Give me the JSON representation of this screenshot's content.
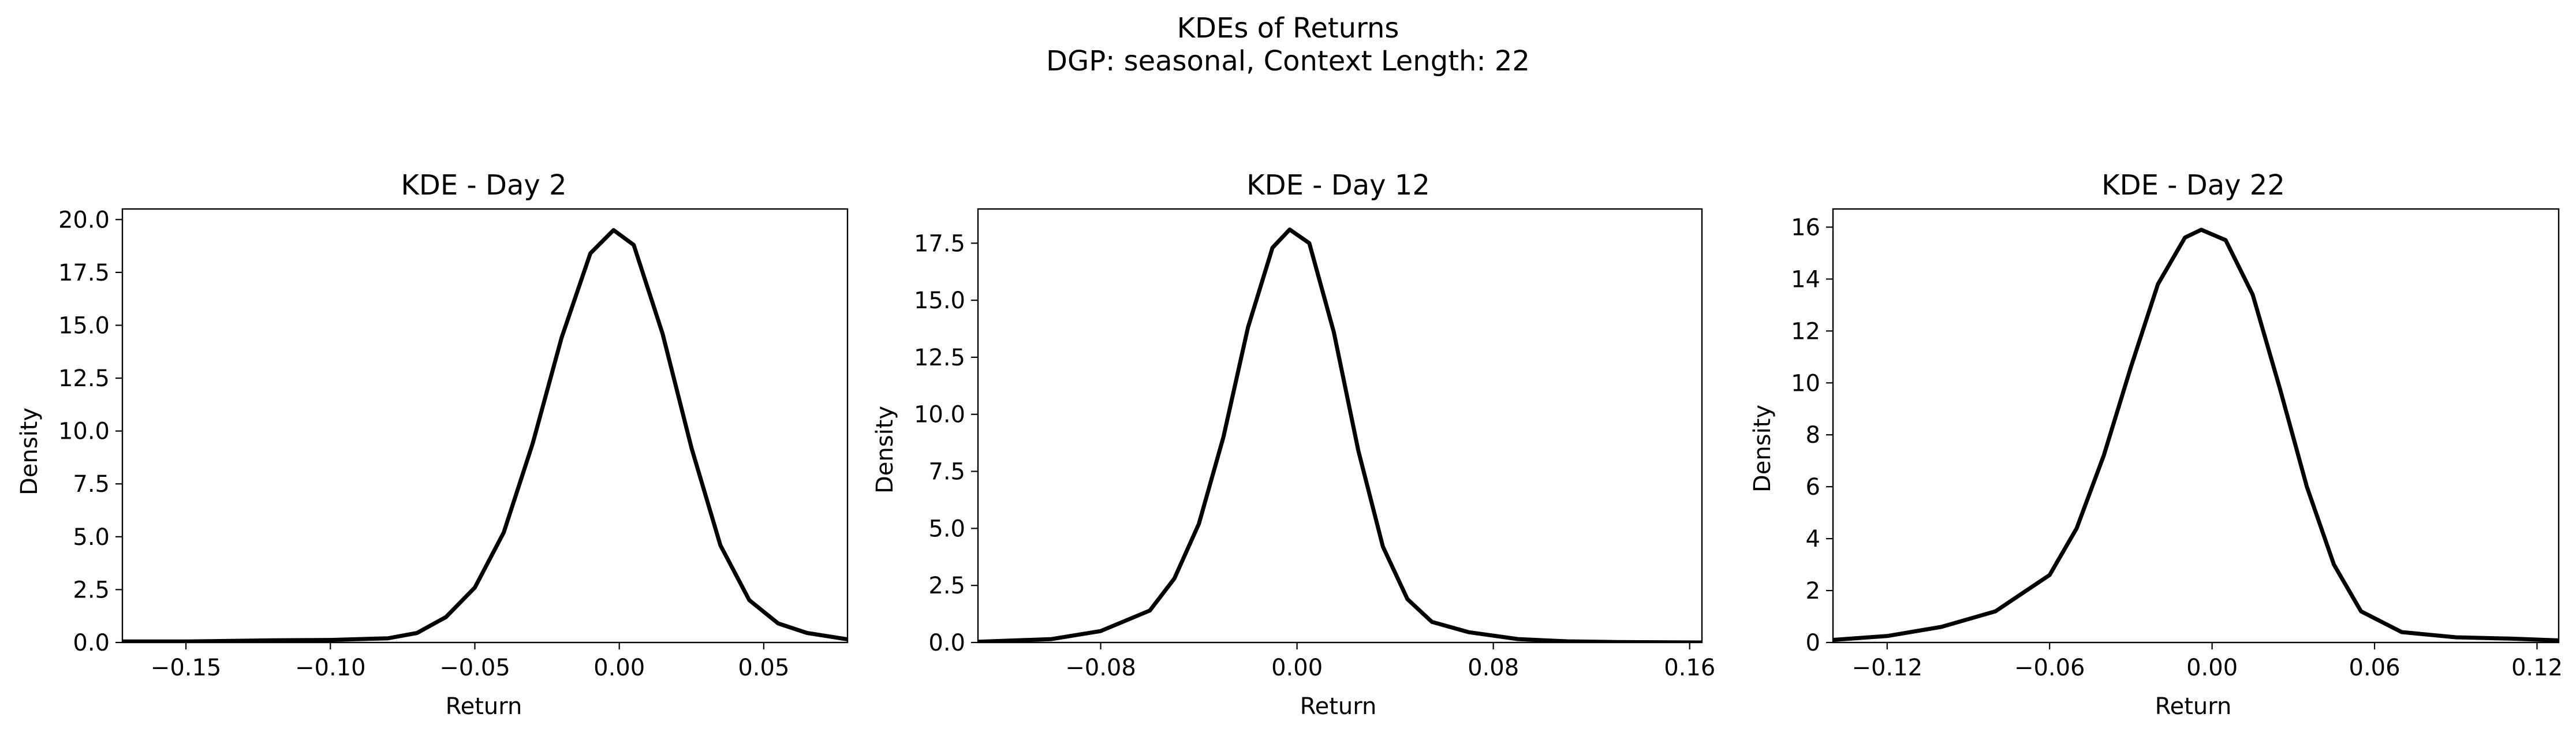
{
  "figure": {
    "title_line1": "KDEs of Returns",
    "title_line2": "DGP: seasonal, Context Length: 22",
    "line_color": "#000000"
  },
  "chart_data": [
    {
      "type": "line",
      "title": "KDE - Day 2",
      "xlabel": "Return",
      "ylabel": "Density",
      "xlim": [
        -0.172,
        0.079
      ],
      "ylim": [
        0,
        20.5
      ],
      "xticks": [
        -0.15,
        -0.1,
        -0.05,
        0.0,
        0.05
      ],
      "xtick_labels": [
        "−0.15",
        "−0.10",
        "−0.05",
        "0.00",
        "0.05"
      ],
      "yticks": [
        0,
        2.5,
        5,
        7.5,
        10,
        12.5,
        15,
        17.5,
        20
      ],
      "ytick_labels": [
        "0.0",
        "2.5",
        "5.0",
        "7.5",
        "10.0",
        "12.5",
        "15.0",
        "17.5",
        "20.0"
      ],
      "series": [
        {
          "x": [
            -0.172,
            -0.15,
            -0.12,
            -0.1,
            -0.08,
            -0.07,
            -0.06,
            -0.05,
            -0.04,
            -0.03,
            -0.02,
            -0.01,
            -0.002,
            0.005,
            0.015,
            0.025,
            0.035,
            0.045,
            0.055,
            0.065,
            0.079
          ],
          "y": [
            0.05,
            0.05,
            0.1,
            0.12,
            0.2,
            0.45,
            1.2,
            2.6,
            5.2,
            9.4,
            14.4,
            18.4,
            19.5,
            18.8,
            14.6,
            9.2,
            4.6,
            2.0,
            0.9,
            0.45,
            0.15
          ]
        }
      ]
    },
    {
      "type": "line",
      "title": "KDE - Day 12",
      "xlabel": "Return",
      "ylabel": "Density",
      "xlim": [
        -0.13,
        0.165
      ],
      "ylim": [
        0,
        19.0
      ],
      "xticks": [
        -0.08,
        0.0,
        0.08,
        0.16
      ],
      "xtick_labels": [
        "−0.08",
        "0.00",
        "0.08",
        "0.16"
      ],
      "yticks": [
        0,
        2.5,
        5,
        7.5,
        10,
        12.5,
        15,
        17.5
      ],
      "ytick_labels": [
        "0.0",
        "2.5",
        "5.0",
        "7.5",
        "10.0",
        "12.5",
        "15.0",
        "17.5"
      ],
      "series": [
        {
          "x": [
            -0.13,
            -0.1,
            -0.08,
            -0.06,
            -0.05,
            -0.04,
            -0.03,
            -0.02,
            -0.01,
            -0.003,
            0.005,
            0.015,
            0.025,
            0.035,
            0.045,
            0.055,
            0.07,
            0.09,
            0.11,
            0.13,
            0.165
          ],
          "y": [
            0.03,
            0.15,
            0.5,
            1.4,
            2.8,
            5.2,
            9.0,
            13.8,
            17.3,
            18.1,
            17.5,
            13.6,
            8.4,
            4.2,
            1.9,
            0.9,
            0.45,
            0.15,
            0.05,
            0.02,
            0.0
          ]
        }
      ]
    },
    {
      "type": "line",
      "title": "KDE - Day 22",
      "xlabel": "Return",
      "ylabel": "Density",
      "xlim": [
        -0.14,
        0.128
      ],
      "ylim": [
        0,
        16.7
      ],
      "xticks": [
        -0.12,
        -0.06,
        0.0,
        0.06,
        0.12
      ],
      "xtick_labels": [
        "−0.12",
        "−0.06",
        "0.00",
        "0.06",
        "0.12"
      ],
      "yticks": [
        0,
        2,
        4,
        6,
        8,
        10,
        12,
        14,
        16
      ],
      "ytick_labels": [
        "0",
        "2",
        "4",
        "6",
        "8",
        "10",
        "12",
        "14",
        "16"
      ],
      "series": [
        {
          "x": [
            -0.14,
            -0.12,
            -0.1,
            -0.08,
            -0.06,
            -0.05,
            -0.04,
            -0.03,
            -0.02,
            -0.01,
            -0.004,
            0.005,
            0.015,
            0.025,
            0.035,
            0.045,
            0.055,
            0.07,
            0.09,
            0.11,
            0.128
          ],
          "y": [
            0.1,
            0.25,
            0.6,
            1.2,
            2.6,
            4.4,
            7.2,
            10.6,
            13.8,
            15.6,
            15.9,
            15.5,
            13.4,
            9.8,
            6.0,
            3.0,
            1.2,
            0.4,
            0.2,
            0.15,
            0.08
          ]
        }
      ]
    }
  ]
}
